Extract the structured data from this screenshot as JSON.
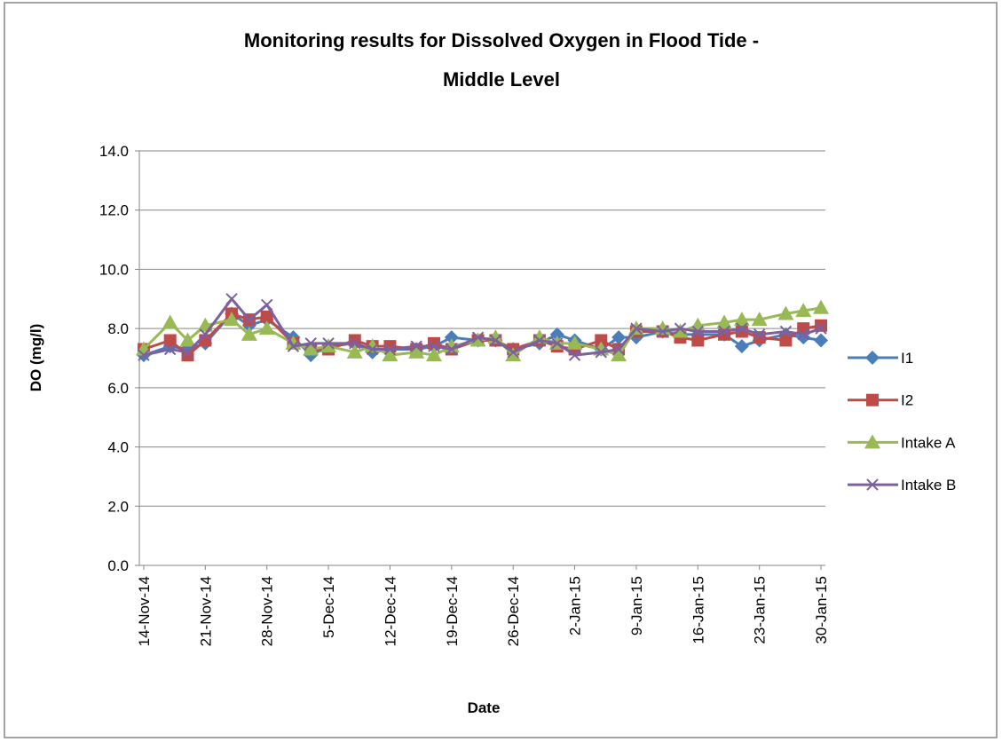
{
  "chart_data": {
    "type": "line",
    "title": [
      "Monitoring results for Dissolved Oxygen in Flood Tide -",
      "Middle Level"
    ],
    "x_label": "Date",
    "y_label": "DO (mg/l)",
    "x": [
      "14-Nov-14",
      "17-Nov-14",
      "19-Nov-14",
      "21-Nov-14",
      "24-Nov-14",
      "26-Nov-14",
      "28-Nov-14",
      "1-Dec-14",
      "3-Dec-14",
      "5-Dec-14",
      "8-Dec-14",
      "10-Dec-14",
      "12-Dec-14",
      "15-Dec-14",
      "17-Dec-14",
      "19-Dec-14",
      "22-Dec-14",
      "24-Dec-14",
      "26-Dec-14",
      "29-Dec-14",
      "31-Dec-14",
      "2-Jan-15",
      "5-Jan-15",
      "7-Jan-15",
      "9-Jan-15",
      "12-Jan-15",
      "14-Jan-15",
      "16-Jan-15",
      "19-Jan-15",
      "21-Jan-15",
      "23-Jan-15",
      "26-Jan-15",
      "28-Jan-15",
      "30-Jan-15"
    ],
    "series": [
      {
        "name": "I1",
        "color": "#4a7ebb",
        "marker": "diamond",
        "values": [
          7.1,
          7.4,
          7.3,
          7.5,
          8.5,
          8.1,
          8.3,
          7.7,
          7.1,
          7.4,
          7.5,
          7.2,
          7.3,
          7.3,
          7.4,
          7.7,
          7.6,
          7.6,
          7.3,
          7.5,
          7.8,
          7.6,
          7.3,
          7.7,
          7.7,
          7.9,
          7.8,
          7.8,
          7.8,
          7.4,
          7.6,
          7.8,
          7.7,
          7.6
        ]
      },
      {
        "name": "I2",
        "color": "#be4b48",
        "marker": "square",
        "values": [
          7.3,
          7.6,
          7.1,
          7.6,
          8.5,
          8.3,
          8.4,
          7.5,
          7.3,
          7.3,
          7.6,
          7.4,
          7.4,
          7.3,
          7.5,
          7.3,
          7.6,
          7.6,
          7.3,
          7.6,
          7.4,
          7.3,
          7.6,
          7.3,
          7.9,
          7.9,
          7.7,
          7.6,
          7.8,
          7.9,
          7.7,
          7.6,
          8.0,
          8.1
        ]
      },
      {
        "name": "Intake A",
        "color": "#98b954",
        "marker": "triangle",
        "values": [
          7.3,
          8.2,
          7.6,
          8.1,
          8.3,
          7.8,
          8.0,
          7.5,
          7.3,
          7.4,
          7.2,
          7.4,
          7.1,
          7.2,
          7.1,
          7.4,
          7.6,
          7.7,
          7.1,
          7.7,
          7.5,
          7.5,
          7.3,
          7.1,
          8.0,
          8.0,
          7.9,
          8.1,
          8.2,
          8.3,
          8.3,
          8.5,
          8.6,
          8.7
        ]
      },
      {
        "name": "Intake B",
        "color": "#7d60a0",
        "marker": "x",
        "values": [
          7.1,
          7.3,
          7.2,
          7.8,
          9.0,
          8.3,
          8.8,
          7.4,
          7.5,
          7.5,
          7.5,
          7.3,
          7.3,
          7.4,
          7.4,
          7.3,
          7.7,
          7.6,
          7.2,
          7.6,
          7.5,
          7.1,
          7.2,
          7.3,
          8.0,
          7.9,
          8.0,
          7.9,
          7.9,
          8.0,
          7.8,
          7.9,
          7.8,
          8.0
        ]
      }
    ],
    "xlim": [
      "14-Nov-14",
      "30-Jan-15"
    ],
    "xticks": [
      "14-Nov-14",
      "21-Nov-14",
      "28-Nov-14",
      "5-Dec-14",
      "12-Dec-14",
      "19-Dec-14",
      "26-Dec-14",
      "2-Jan-15",
      "9-Jan-15",
      "16-Jan-15",
      "23-Jan-15",
      "30-Jan-15"
    ],
    "ylim": [
      0,
      14
    ],
    "yticks": [
      {
        "value": 0,
        "label": "0.0"
      },
      {
        "value": 2,
        "label": "2.0"
      },
      {
        "value": 4,
        "label": "4.0"
      },
      {
        "value": 6,
        "label": "6.0"
      },
      {
        "value": 8,
        "label": "8.0"
      },
      {
        "value": 10,
        "label": "10.0"
      },
      {
        "value": 12,
        "label": "12.0"
      },
      {
        "value": 14,
        "label": "14.0"
      }
    ],
    "grid": true,
    "legend": "right"
  }
}
